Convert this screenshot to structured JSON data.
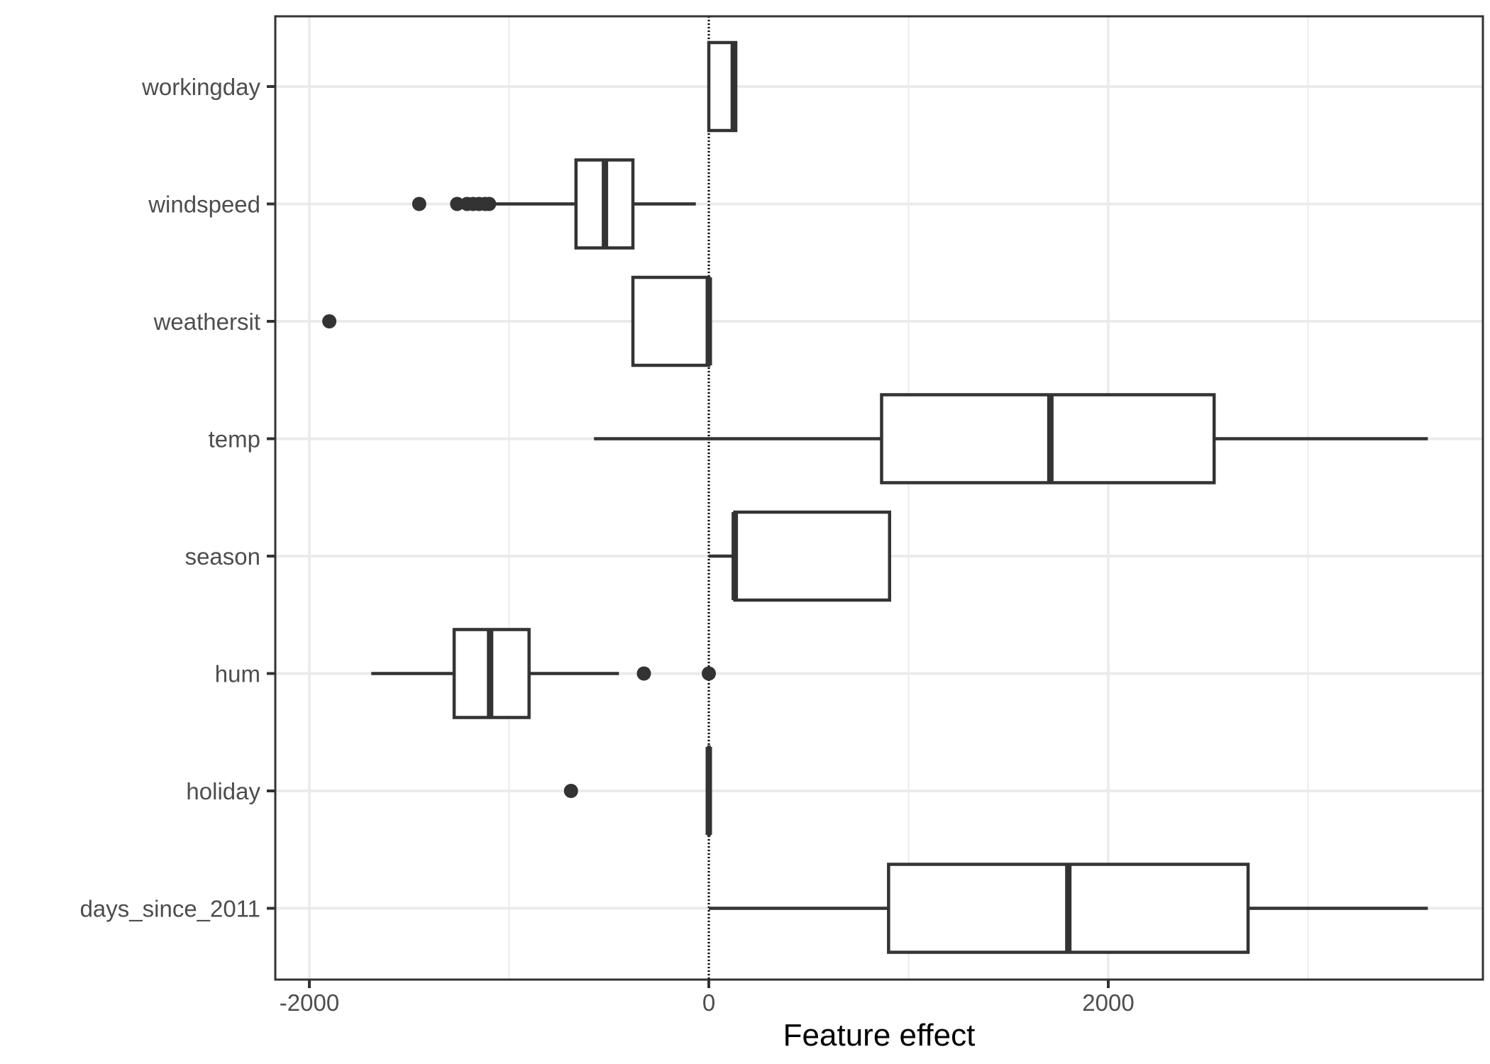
{
  "chart_data": {
    "type": "boxplot",
    "orientation": "horizontal",
    "xlabel": "Feature effect",
    "ylabel": "",
    "xlim": [
      -2180,
      3850
    ],
    "x_ticks": [
      -2000,
      0,
      2000
    ],
    "x_tick_labels": [
      "-2000",
      "0",
      "2000"
    ],
    "reference_line": {
      "x": 0,
      "style": "dotted"
    },
    "grid": true,
    "categories": [
      "workingday",
      "windspeed",
      "weathersit",
      "temp",
      "season",
      "hum",
      "holiday",
      "days_since_2011"
    ],
    "boxes": [
      {
        "category": "workingday",
        "whisker_low": 0,
        "q1": 0,
        "median": 125,
        "q3": 135,
        "whisker_high": 135,
        "outliers": []
      },
      {
        "category": "windspeed",
        "whisker_low": -1100,
        "q1": -665,
        "median": -520,
        "q3": -380,
        "whisker_high": -65,
        "outliers": [
          -1450,
          -1260,
          -1210,
          -1180,
          -1150,
          -1120,
          -1100
        ]
      },
      {
        "category": "weathersit",
        "whisker_low": -380,
        "q1": -380,
        "median": 0,
        "q3": 0,
        "whisker_high": 0,
        "outliers": [
          -1900
        ]
      },
      {
        "category": "temp",
        "whisker_low": -575,
        "q1": 865,
        "median": 1710,
        "q3": 2530,
        "whisker_high": 3600,
        "outliers": []
      },
      {
        "category": "season",
        "whisker_low": 0,
        "q1": 130,
        "median": 130,
        "q3": 905,
        "whisker_high": 905,
        "outliers": []
      },
      {
        "category": "hum",
        "whisker_low": -1690,
        "q1": -1275,
        "median": -1095,
        "q3": -900,
        "whisker_high": -450,
        "outliers": [
          -325,
          0
        ]
      },
      {
        "category": "holiday",
        "whisker_low": 0,
        "q1": 0,
        "median": 0,
        "q3": 0,
        "whisker_high": 0,
        "outliers": [
          -690
        ]
      },
      {
        "category": "days_since_2011",
        "whisker_low": 0,
        "q1": 900,
        "median": 1800,
        "q3": 2700,
        "whisker_high": 3600,
        "outliers": []
      }
    ]
  }
}
